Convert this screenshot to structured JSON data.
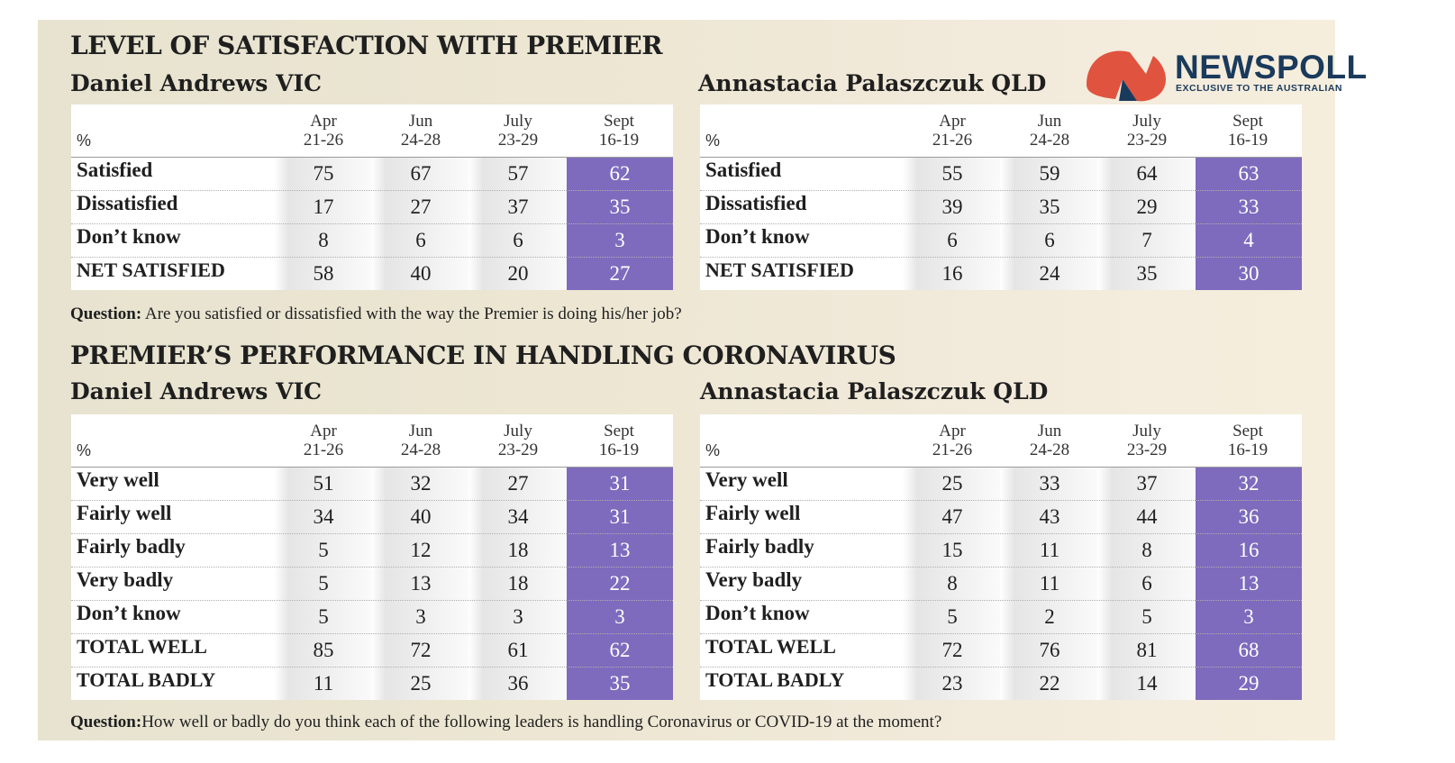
{
  "titles": {
    "satisfaction": "LEVEL OF SATISFACTION WITH PREMIER",
    "coronavirus": "PREMIER’S PERFORMANCE IN HANDLING CORONAVIRUS"
  },
  "logo": {
    "word": "NEWSPOLL",
    "tagline": "EXCLUSIVE TO THE AUSTRALIAN",
    "colors": {
      "mark_red": "#e0533f",
      "mark_navy": "#1a3a5c",
      "text": "#1a3a5c"
    }
  },
  "colors": {
    "highlight": "#7e6bbd",
    "panel": "#ece6d2"
  },
  "columns": [
    {
      "month": "Apr",
      "dates": "21-26"
    },
    {
      "month": "Jun",
      "dates": "24-28"
    },
    {
      "month": "July",
      "dates": "23-29"
    },
    {
      "month": "Sept",
      "dates": "16-19"
    }
  ],
  "unit": "%",
  "tables": {
    "sat_vic": {
      "leader": "Daniel Andrews VIC",
      "rows": [
        {
          "label": "Satisfied",
          "values": [
            "75",
            "67",
            "57",
            "62"
          ]
        },
        {
          "label": "Dissatisfied",
          "values": [
            "17",
            "27",
            "37",
            "35"
          ]
        },
        {
          "label": "Don’t know",
          "values": [
            "8",
            "6",
            "6",
            "3"
          ]
        },
        {
          "label": "NET SATISFIED",
          "values": [
            "58",
            "40",
            "20",
            "27"
          ]
        }
      ]
    },
    "sat_qld": {
      "leader": "Annastacia Palaszczuk QLD",
      "rows": [
        {
          "label": "Satisfied",
          "values": [
            "55",
            "59",
            "64",
            "63"
          ]
        },
        {
          "label": "Dissatisfied",
          "values": [
            "39",
            "35",
            "29",
            "33"
          ]
        },
        {
          "label": "Don’t know",
          "values": [
            "6",
            "6",
            "7",
            "4"
          ]
        },
        {
          "label": "NET SATISFIED",
          "values": [
            "16",
            "24",
            "35",
            "30"
          ]
        }
      ]
    },
    "cov_vic": {
      "leader": "Daniel Andrews VIC",
      "rows": [
        {
          "label": "Very well",
          "values": [
            "51",
            "32",
            "27",
            "31"
          ]
        },
        {
          "label": "Fairly well",
          "values": [
            "34",
            "40",
            "34",
            "31"
          ]
        },
        {
          "label": "Fairly badly",
          "values": [
            "5",
            "12",
            "18",
            "13"
          ]
        },
        {
          "label": "Very badly",
          "values": [
            "5",
            "13",
            "18",
            "22"
          ]
        },
        {
          "label": "Don’t know",
          "values": [
            "5",
            "3",
            "3",
            "3"
          ]
        },
        {
          "label": "TOTAL WELL",
          "values": [
            "85",
            "72",
            "61",
            "62"
          ]
        },
        {
          "label": "TOTAL BADLY",
          "values": [
            "11",
            "25",
            "36",
            "35"
          ]
        }
      ]
    },
    "cov_qld": {
      "leader": "Annastacia Palaszczuk QLD",
      "rows": [
        {
          "label": "Very well",
          "values": [
            "25",
            "33",
            "37",
            "32"
          ]
        },
        {
          "label": "Fairly well",
          "values": [
            "47",
            "43",
            "44",
            "36"
          ]
        },
        {
          "label": "Fairly badly",
          "values": [
            "15",
            "11",
            "8",
            "16"
          ]
        },
        {
          "label": "Very badly",
          "values": [
            "8",
            "11",
            "6",
            "13"
          ]
        },
        {
          "label": "Don’t know",
          "values": [
            "5",
            "2",
            "5",
            "3"
          ]
        },
        {
          "label": "TOTAL WELL",
          "values": [
            "72",
            "76",
            "81",
            "68"
          ]
        },
        {
          "label": "TOTAL BADLY",
          "values": [
            "23",
            "22",
            "14",
            "29"
          ]
        }
      ]
    }
  },
  "questions": {
    "label_1": "Question:",
    "text_1": " Are you satisfied or dissatisfied with the way the Premier is doing his/her job?",
    "label_2": "Question:",
    "text_2": "How well or badly do you think each of the following leaders is handling Coronavirus or COVID-19 at the moment?"
  }
}
